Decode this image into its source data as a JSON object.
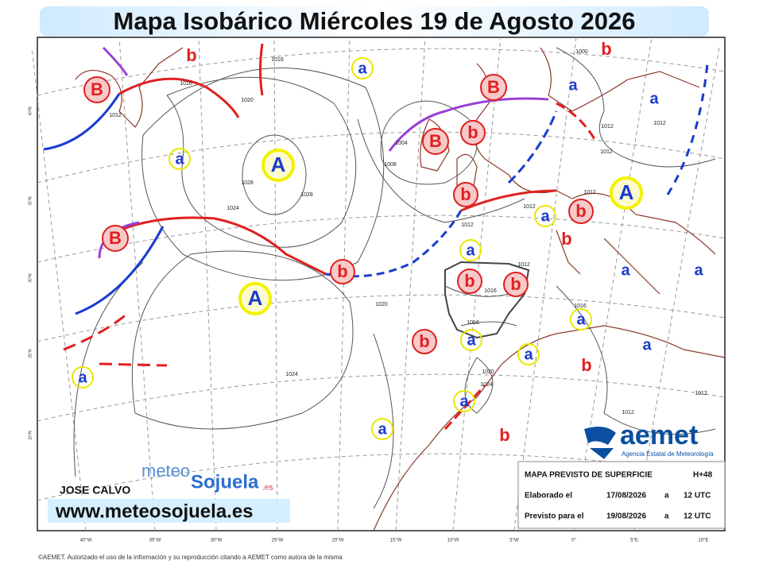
{
  "header": {
    "title": "Mapa Isobárico Miércoles 19 de Agosto 2026"
  },
  "map": {
    "highs": [
      "A",
      "A",
      "A"
    ],
    "lows": [
      "B",
      "B",
      "B",
      "B"
    ],
    "secondary_highs": [
      "a",
      "a",
      "a",
      "a",
      "a",
      "a",
      "a",
      "a",
      "a",
      "a",
      "a",
      "a",
      "a",
      "a",
      "a"
    ],
    "secondary_lows": [
      "b",
      "b",
      "b",
      "b",
      "b",
      "b",
      "b",
      "b",
      "b",
      "b",
      "b",
      "b"
    ],
    "isobar_labels": [
      "1016",
      "1012",
      "1020",
      "1016",
      "1028",
      "1028",
      "1024",
      "1008",
      "1004",
      "1000",
      "1012",
      "1012",
      "1012",
      "1012",
      "1012",
      "1012",
      "1012",
      "1016",
      "1016",
      "1016",
      "1020",
      "1024",
      "1020",
      "1024",
      "1012",
      "1012"
    ],
    "latitude_labels": [
      "40°N",
      "35°N",
      "30°N",
      "25°N",
      "20°N"
    ],
    "longitude_labels": [
      "40°W",
      "35°W",
      "30°W",
      "25°W",
      "20°W",
      "15°W",
      "10°W",
      "5°W",
      "0°",
      "5°E",
      "10°E"
    ]
  },
  "branding": {
    "author": "JOSE CALVO",
    "website": "www.meteosojuela.es",
    "logo_meteo": "meteo",
    "logo_sojuela": "Sojuela",
    "logo_tld": ".es",
    "aemet": "aemet",
    "aemet_full": "Agencia Estatal de Meteorología"
  },
  "info_box": {
    "rows": [
      [
        "MAPA PREVISTO DE SUPERFICIE",
        "H+48"
      ],
      [
        "Elaborado el",
        "17/08/2026",
        "a",
        "12 UTC"
      ],
      [
        "Previsto para el",
        "19/08/2026",
        "a",
        "12 UTC"
      ]
    ]
  },
  "footer": {
    "copyright": "©AEMET. Autorizado el uso de la información y su reproducción citando a AEMET como autora de la misma"
  }
}
